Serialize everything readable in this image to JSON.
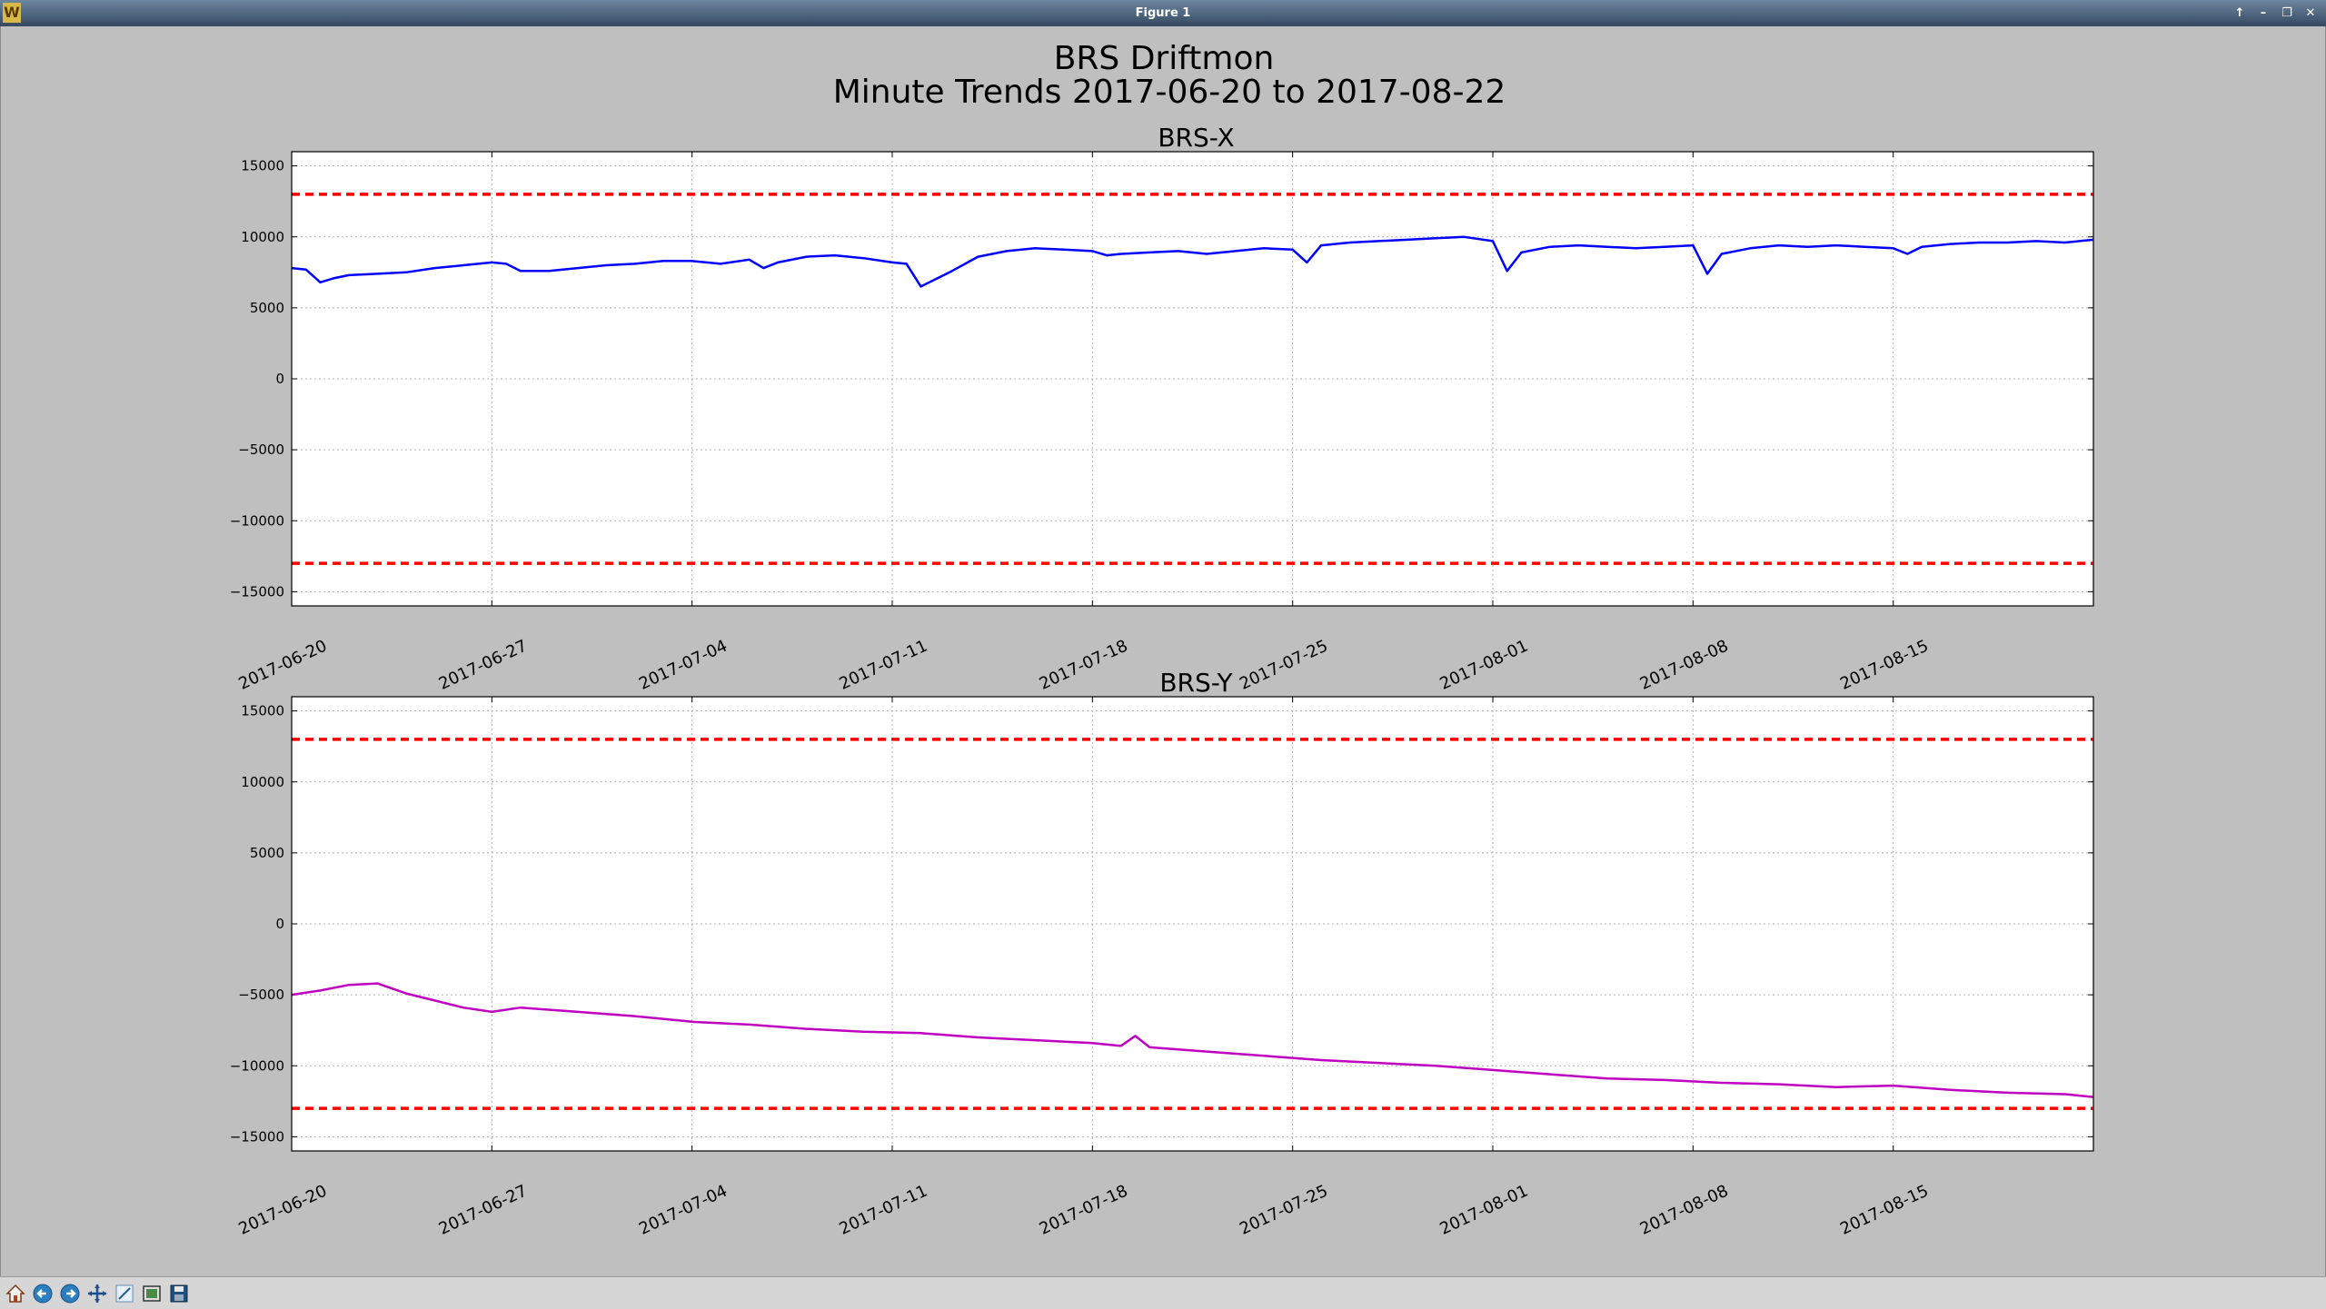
{
  "window": {
    "title": "Figure 1",
    "controls": [
      "↑",
      "–",
      "❐",
      "✕"
    ]
  },
  "figure": {
    "title_line1": "BRS Driftmon",
    "title_line2": "Minute Trends 2017-06-20  to 2017-08-22"
  },
  "toolbar": {
    "icons": [
      "home-icon",
      "back-icon",
      "forward-icon",
      "pan-icon",
      "zoom-icon",
      "configure-subplots-icon",
      "save-icon"
    ]
  },
  "colors": {
    "background": "#bfbfbf",
    "brs_x_line": "#0000ff",
    "brs_y_line": "#c000c0",
    "threshold": "#ff0000",
    "grid": "#b0b0b0"
  },
  "chart_data": [
    {
      "type": "line",
      "title": "BRS-X",
      "xlabel": "",
      "ylabel": "",
      "xlim": [
        "2017-06-20",
        "2017-08-22"
      ],
      "ylim": [
        -16000,
        16000
      ],
      "yticks": [
        15000,
        10000,
        5000,
        0,
        -5000,
        -10000,
        -15000
      ],
      "ytick_labels": [
        "15000",
        "10000",
        "5000",
        "0",
        "−5000",
        "−10000",
        "−15000"
      ],
      "xticks": [
        "2017-06-20",
        "2017-06-27",
        "2017-07-04",
        "2017-07-11",
        "2017-07-18",
        "2017-07-25",
        "2017-08-01",
        "2017-08-08",
        "2017-08-15"
      ],
      "grid": true,
      "thresholds": [
        13000,
        -13000
      ],
      "series": [
        {
          "x": [
            "2017-06-20",
            "2017-06-20 12:00",
            "2017-06-21",
            "2017-06-21 12:00",
            "2017-06-22",
            "2017-06-23",
            "2017-06-24",
            "2017-06-25",
            "2017-06-26",
            "2017-06-27",
            "2017-06-27 12:00",
            "2017-06-28",
            "2017-06-29",
            "2017-06-30",
            "2017-07-01",
            "2017-07-02",
            "2017-07-03",
            "2017-07-04",
            "2017-07-05",
            "2017-07-06",
            "2017-07-06 12:00",
            "2017-07-07",
            "2017-07-08",
            "2017-07-09",
            "2017-07-10",
            "2017-07-11",
            "2017-07-11 12:00",
            "2017-07-12",
            "2017-07-13",
            "2017-07-14",
            "2017-07-15",
            "2017-07-16",
            "2017-07-17",
            "2017-07-18",
            "2017-07-18 12:00",
            "2017-07-19",
            "2017-07-20",
            "2017-07-21",
            "2017-07-22",
            "2017-07-23",
            "2017-07-24",
            "2017-07-25",
            "2017-07-25 12:00",
            "2017-07-26",
            "2017-07-27",
            "2017-07-28",
            "2017-07-29",
            "2017-07-30",
            "2017-07-31",
            "2017-08-01",
            "2017-08-01 12:00",
            "2017-08-02",
            "2017-08-03",
            "2017-08-04",
            "2017-08-05",
            "2017-08-06",
            "2017-08-07",
            "2017-08-08",
            "2017-08-08 12:00",
            "2017-08-09",
            "2017-08-10",
            "2017-08-11",
            "2017-08-12",
            "2017-08-13",
            "2017-08-14",
            "2017-08-15",
            "2017-08-15 12:00",
            "2017-08-16",
            "2017-08-17",
            "2017-08-18",
            "2017-08-19",
            "2017-08-20",
            "2017-08-21",
            "2017-08-22"
          ],
          "y": [
            7800,
            7700,
            6800,
            7100,
            7300,
            7400,
            7500,
            7800,
            8000,
            8200,
            8100,
            7600,
            7600,
            7800,
            8000,
            8100,
            8300,
            8300,
            8100,
            8400,
            7800,
            8200,
            8600,
            8700,
            8500,
            8200,
            8100,
            6500,
            7500,
            8600,
            9000,
            9200,
            9100,
            9000,
            8700,
            8800,
            8900,
            9000,
            8800,
            9000,
            9200,
            9100,
            8200,
            9400,
            9600,
            9700,
            9800,
            9900,
            10000,
            9700,
            7600,
            8900,
            9300,
            9400,
            9300,
            9200,
            9300,
            9400,
            7400,
            8800,
            9200,
            9400,
            9300,
            9400,
            9300,
            9200,
            8800,
            9300,
            9500,
            9600,
            9600,
            9700,
            9600,
            9800
          ]
        }
      ]
    },
    {
      "type": "line",
      "title": "BRS-Y",
      "xlabel": "",
      "ylabel": "",
      "xlim": [
        "2017-06-20",
        "2017-08-22"
      ],
      "ylim": [
        -16000,
        16000
      ],
      "yticks": [
        15000,
        10000,
        5000,
        0,
        -5000,
        -10000,
        -15000
      ],
      "ytick_labels": [
        "15000",
        "10000",
        "5000",
        "0",
        "−5000",
        "−10000",
        "−15000"
      ],
      "xticks": [
        "2017-06-20",
        "2017-06-27",
        "2017-07-04",
        "2017-07-11",
        "2017-07-18",
        "2017-07-25",
        "2017-08-01",
        "2017-08-08",
        "2017-08-15"
      ],
      "grid": true,
      "thresholds": [
        13000,
        -13000
      ],
      "series": [
        {
          "x": [
            "2017-06-20",
            "2017-06-21",
            "2017-06-22",
            "2017-06-23",
            "2017-06-24",
            "2017-06-25",
            "2017-06-26",
            "2017-06-27",
            "2017-06-28",
            "2017-06-30",
            "2017-07-02",
            "2017-07-04",
            "2017-07-06",
            "2017-07-08",
            "2017-07-10",
            "2017-07-12",
            "2017-07-14",
            "2017-07-16",
            "2017-07-18",
            "2017-07-19",
            "2017-07-19 12:00",
            "2017-07-20",
            "2017-07-22",
            "2017-07-24",
            "2017-07-26",
            "2017-07-28",
            "2017-07-30",
            "2017-08-01",
            "2017-08-03",
            "2017-08-05",
            "2017-08-07",
            "2017-08-09",
            "2017-08-11",
            "2017-08-13",
            "2017-08-15",
            "2017-08-17",
            "2017-08-19",
            "2017-08-21",
            "2017-08-22"
          ],
          "y": [
            -5000,
            -4700,
            -4300,
            -4200,
            -4900,
            -5400,
            -5900,
            -6200,
            -5900,
            -6200,
            -6500,
            -6900,
            -7100,
            -7400,
            -7600,
            -7700,
            -8000,
            -8200,
            -8400,
            -8600,
            -7900,
            -8700,
            -9000,
            -9300,
            -9600,
            -9800,
            -10000,
            -10300,
            -10600,
            -10900,
            -11000,
            -11200,
            -11300,
            -11500,
            -11400,
            -11700,
            -11900,
            -12000,
            -12200
          ]
        }
      ]
    }
  ]
}
